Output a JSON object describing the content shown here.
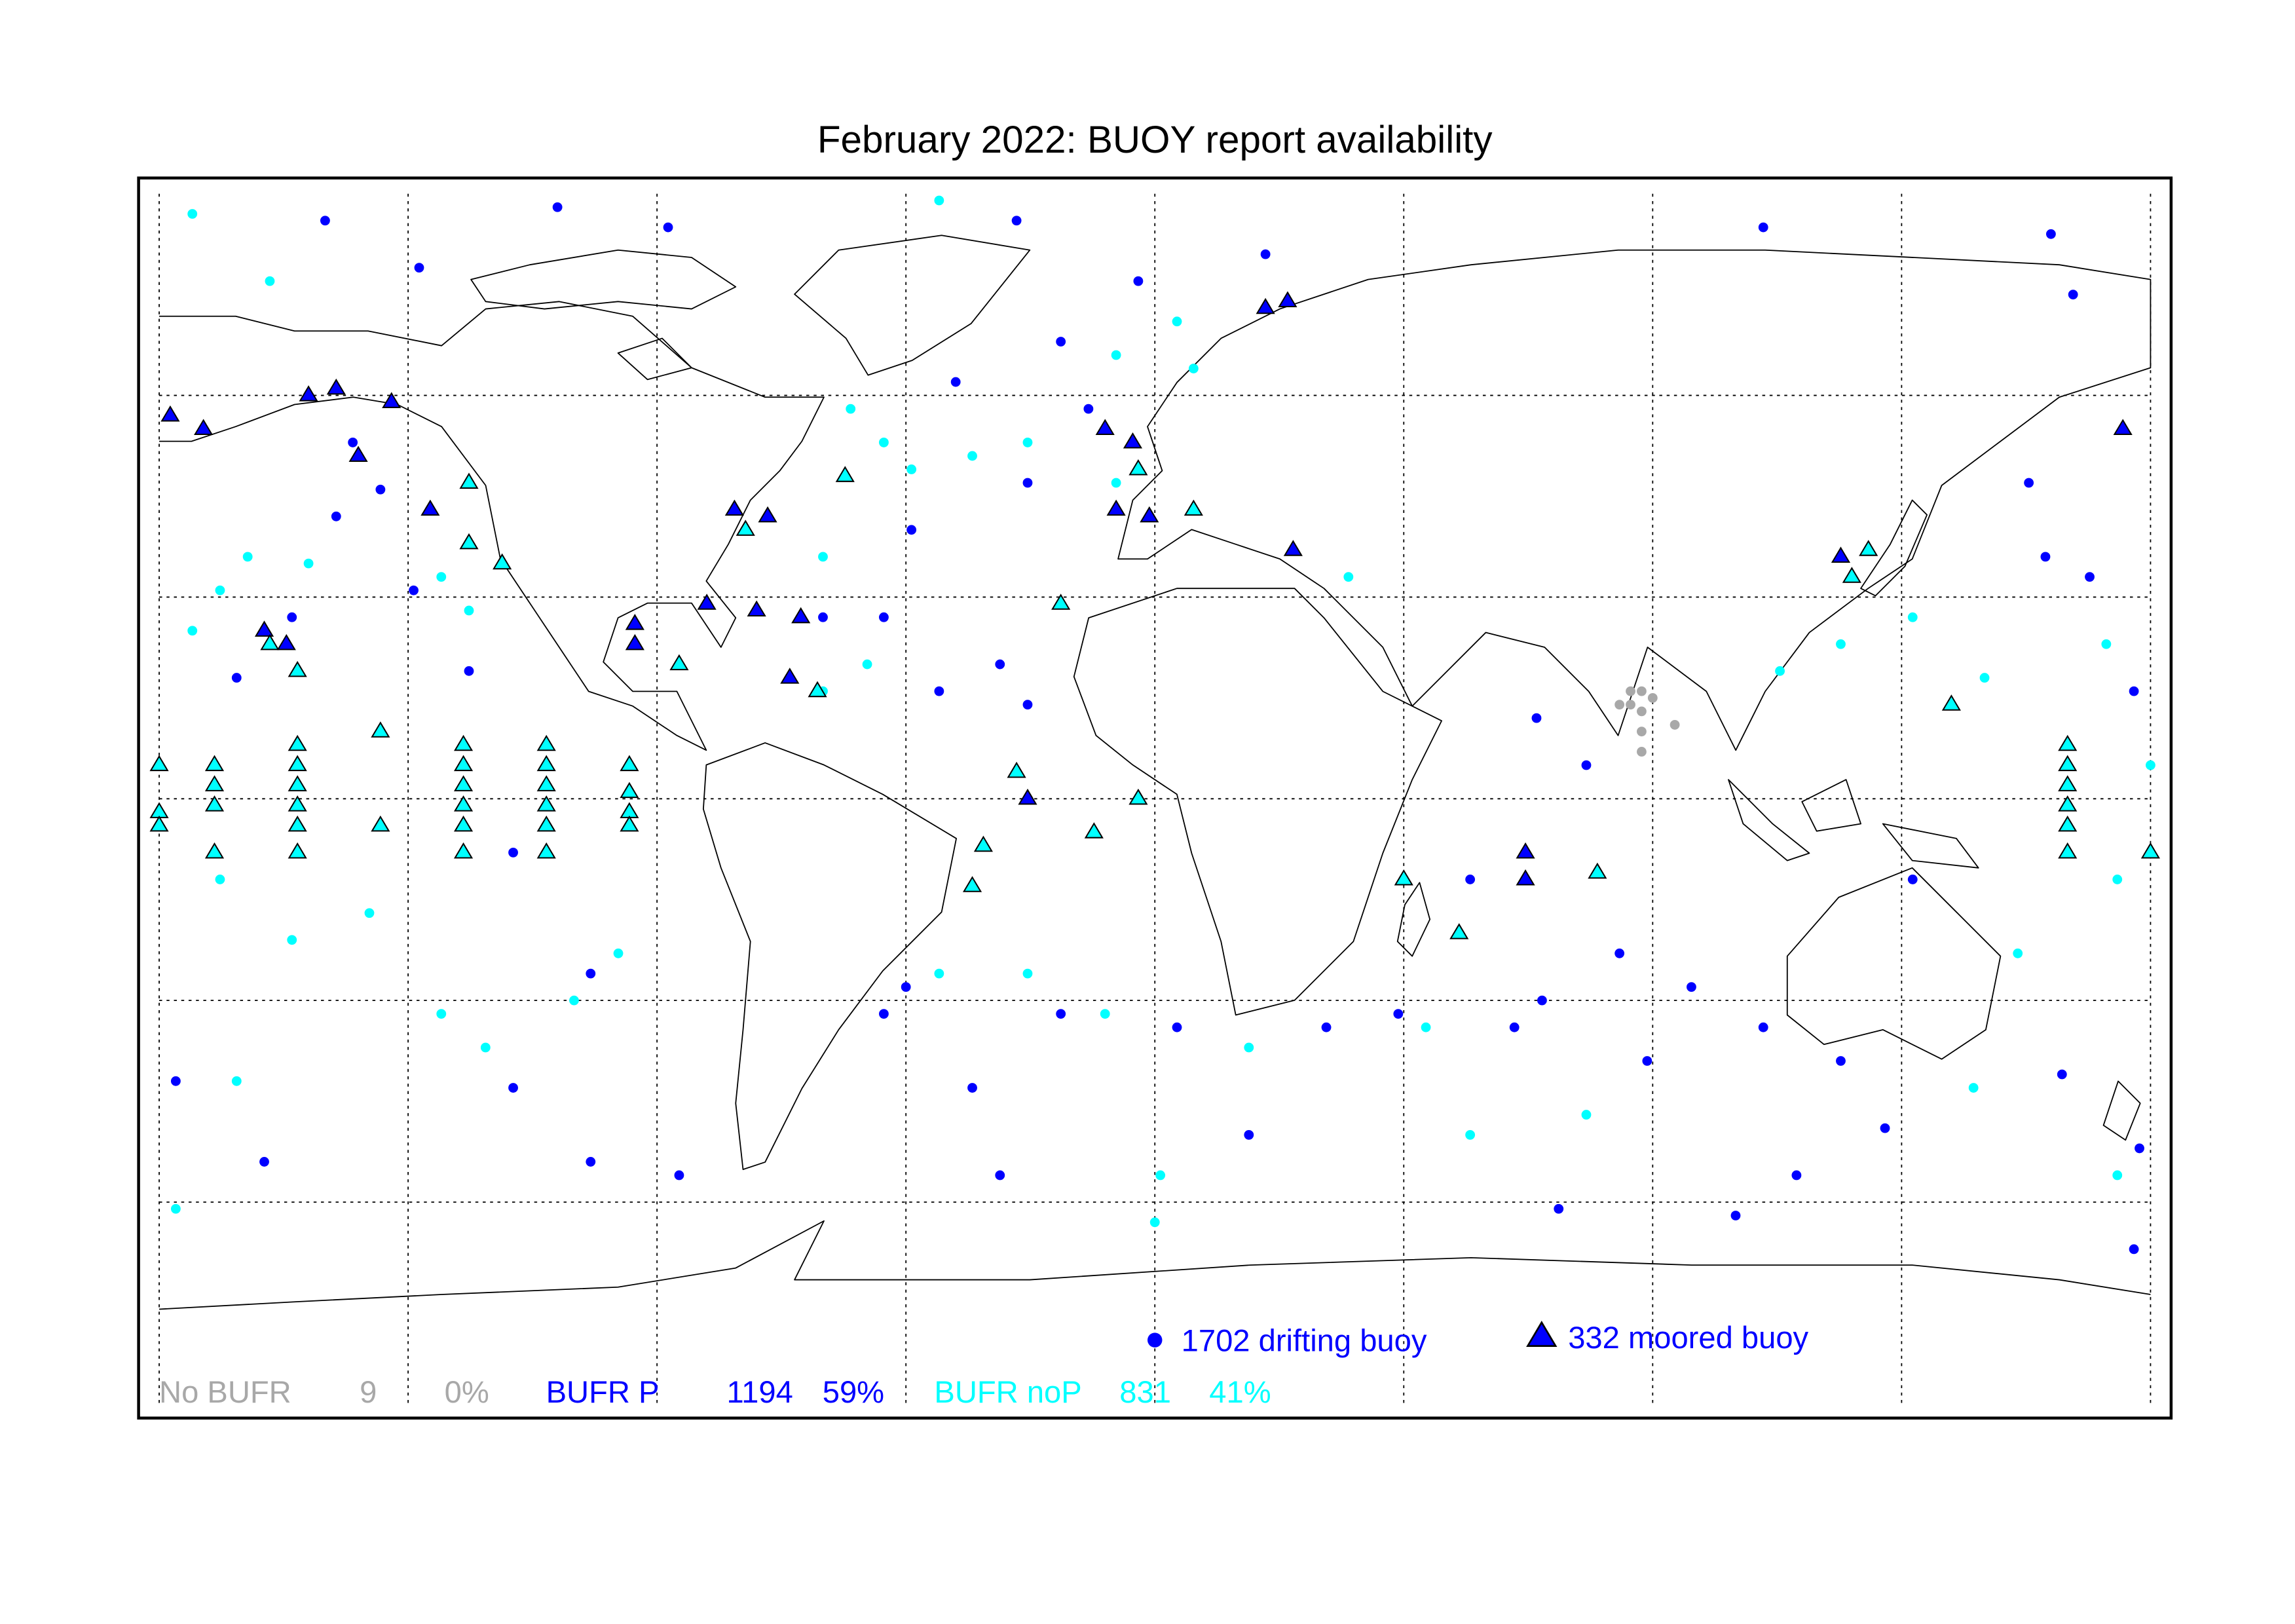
{
  "chart_data": {
    "type": "map",
    "title": "February 2022: BUOY report availability",
    "legend": [
      {
        "label": "1702 drifting buoy",
        "marker": "circle"
      },
      {
        "label": "332 moored buoy",
        "marker": "triangle"
      }
    ],
    "legend_color": "#0000ff",
    "grid": true,
    "series": [
      {
        "name": "No BUFR",
        "color": "#a8a8a8",
        "count": 9,
        "percent": {
          "value": 0,
          "label": "0%"
        },
        "drifting": [
          [
            88,
            16
          ],
          [
            84,
            14
          ],
          [
            86,
            14
          ],
          [
            88,
            13
          ],
          [
            94,
            11
          ],
          [
            88,
            10
          ],
          [
            88,
            7
          ],
          [
            86,
            16
          ],
          [
            90,
            15
          ]
        ],
        "moored": []
      },
      {
        "name": "BUFR P",
        "color": "#0000ff",
        "count": 1194,
        "percent": {
          "value": 59,
          "label": "59%"
        },
        "drifting": [
          [
            -150,
            86
          ],
          [
            -133,
            79
          ],
          [
            -108,
            88
          ],
          [
            -88,
            85
          ],
          [
            -25,
            86
          ],
          [
            -3,
            77
          ],
          [
            20,
            81
          ],
          [
            110,
            85
          ],
          [
            162,
            84
          ],
          [
            166,
            75
          ],
          [
            -145,
            53
          ],
          [
            -140,
            46
          ],
          [
            -148,
            42
          ],
          [
            -134,
            31
          ],
          [
            -156,
            27
          ],
          [
            -166,
            18
          ],
          [
            -124,
            19
          ],
          [
            -116,
            -8
          ],
          [
            -102,
            -26
          ],
          [
            -116,
            -43
          ],
          [
            -49,
            27
          ],
          [
            -39,
            16
          ],
          [
            -23,
            14
          ],
          [
            -28,
            20
          ],
          [
            -60,
            27
          ],
          [
            -44,
            40
          ],
          [
            -23,
            47
          ],
          [
            -12,
            58
          ],
          [
            -36,
            62
          ],
          [
            -17,
            68
          ],
          [
            69,
            12
          ],
          [
            78,
            5
          ],
          [
            57,
            -12
          ],
          [
            84,
            -23
          ],
          [
            97,
            -28
          ],
          [
            110,
            -34
          ],
          [
            124,
            -39
          ],
          [
            137,
            -12
          ],
          [
            169,
            33
          ],
          [
            177,
            16
          ],
          [
            158,
            47
          ],
          [
            161,
            36
          ],
          [
            31,
            -34
          ],
          [
            44,
            -32
          ],
          [
            70,
            -30
          ],
          [
            73,
            -61
          ],
          [
            105,
            -62
          ],
          [
            116,
            -56
          ],
          [
            132,
            -49
          ],
          [
            164,
            -41
          ],
          [
            -49,
            -32
          ],
          [
            -33,
            -43
          ],
          [
            -17,
            -32
          ],
          [
            4,
            -34
          ],
          [
            -28,
            -56
          ],
          [
            -45,
            -28
          ],
          [
            -86,
            -56
          ],
          [
            -102,
            -54
          ],
          [
            -161,
            -54
          ],
          [
            -177,
            -42
          ],
          [
            178,
            -52
          ],
          [
            177,
            -67
          ],
          [
            17,
            -50
          ],
          [
            65,
            -34
          ],
          [
            89,
            -39
          ]
        ],
        "moored": [
          [
            -178,
            57
          ],
          [
            -172,
            55
          ],
          [
            -153,
            60
          ],
          [
            -148,
            61
          ],
          [
            -138,
            59
          ],
          [
            -131,
            43
          ],
          [
            -144,
            51
          ],
          [
            -161,
            25
          ],
          [
            -157,
            23
          ],
          [
            -76,
            43
          ],
          [
            -70,
            42
          ],
          [
            -94,
            26
          ],
          [
            -94,
            23
          ],
          [
            -81,
            29
          ],
          [
            -72,
            28
          ],
          [
            -66,
            18
          ],
          [
            -64,
            27
          ],
          [
            -7,
            43
          ],
          [
            -1,
            42
          ],
          [
            20,
            73
          ],
          [
            24,
            74
          ],
          [
            175,
            55
          ],
          [
            67,
            -8
          ],
          [
            67,
            -12
          ],
          [
            -23,
            0
          ],
          [
            25,
            37
          ],
          [
            -9,
            55
          ],
          [
            -4,
            53
          ],
          [
            124,
            36
          ]
        ]
      },
      {
        "name": "BUFR noP",
        "color": "#00ffff",
        "count": 831,
        "percent": {
          "value": 41,
          "label": "41%"
        },
        "drifting": [
          [
            -174,
            87
          ],
          [
            -160,
            77
          ],
          [
            -39,
            89
          ],
          [
            -49,
            53
          ],
          [
            -44,
            49
          ],
          [
            -55,
            58
          ],
          [
            -33,
            51
          ],
          [
            -23,
            53
          ],
          [
            -7,
            47
          ],
          [
            4,
            71
          ],
          [
            7,
            64
          ],
          [
            -7,
            66
          ],
          [
            -169,
            31
          ],
          [
            -164,
            36
          ],
          [
            -153,
            35
          ],
          [
            -174,
            25
          ],
          [
            -129,
            33
          ],
          [
            -124,
            28
          ],
          [
            -60,
            36
          ],
          [
            -52,
            20
          ],
          [
            -60,
            16
          ],
          [
            -169,
            -12
          ],
          [
            -156,
            -21
          ],
          [
            -142,
            -17
          ],
          [
            -129,
            -32
          ],
          [
            -121,
            -37
          ],
          [
            -105,
            -30
          ],
          [
            -97,
            -23
          ],
          [
            -177,
            -61
          ],
          [
            -166,
            -42
          ],
          [
            -39,
            -26
          ],
          [
            -23,
            -26
          ],
          [
            -9,
            -32
          ],
          [
            17,
            -37
          ],
          [
            49,
            -34
          ],
          [
            148,
            -43
          ],
          [
            156,
            -23
          ],
          [
            174,
            -12
          ],
          [
            180,
            5
          ],
          [
            172,
            23
          ],
          [
            137,
            27
          ],
          [
            150,
            18
          ],
          [
            113,
            19
          ],
          [
            124,
            23
          ],
          [
            35,
            33
          ],
          [
            1,
            -56
          ],
          [
            0,
            -63
          ],
          [
            174,
            -56
          ],
          [
            57,
            -50
          ],
          [
            78,
            -47
          ]
        ],
        "moored": [
          [
            -180,
            5
          ],
          [
            -180,
            -2
          ],
          [
            -180,
            -4
          ],
          [
            -170,
            5
          ],
          [
            -170,
            2
          ],
          [
            -170,
            -1
          ],
          [
            -170,
            -8
          ],
          [
            -155,
            8
          ],
          [
            -155,
            5
          ],
          [
            -155,
            2
          ],
          [
            -155,
            -1
          ],
          [
            -155,
            -4
          ],
          [
            -155,
            -8
          ],
          [
            -140,
            10
          ],
          [
            -140,
            -4
          ],
          [
            -125,
            8
          ],
          [
            -125,
            5
          ],
          [
            -125,
            2
          ],
          [
            -125,
            -1
          ],
          [
            -125,
            -4
          ],
          [
            -125,
            -8
          ],
          [
            -110,
            8
          ],
          [
            -110,
            5
          ],
          [
            -110,
            2
          ],
          [
            -110,
            -1
          ],
          [
            -110,
            -4
          ],
          [
            -110,
            -8
          ],
          [
            -95,
            5
          ],
          [
            -95,
            1
          ],
          [
            -95,
            -2
          ],
          [
            -95,
            -4
          ],
          [
            165,
            8
          ],
          [
            165,
            5
          ],
          [
            165,
            2
          ],
          [
            165,
            -1
          ],
          [
            165,
            -4
          ],
          [
            165,
            -8
          ],
          [
            180,
            -8
          ],
          [
            -124,
            47
          ],
          [
            -124,
            38
          ],
          [
            -118,
            35
          ],
          [
            -160,
            23
          ],
          [
            -155,
            19
          ],
          [
            -74,
            40
          ],
          [
            -86,
            20
          ],
          [
            -61,
            16
          ],
          [
            -3,
            49
          ],
          [
            7,
            43
          ],
          [
            129,
            37
          ],
          [
            126,
            33
          ],
          [
            144,
            14
          ],
          [
            45,
            -12
          ],
          [
            55,
            -20
          ],
          [
            80,
            -11
          ],
          [
            -31,
            -7
          ],
          [
            -33,
            -13
          ],
          [
            -11,
            -5
          ],
          [
            -3,
            0
          ],
          [
            -25,
            4
          ],
          [
            -17,
            29
          ],
          [
            -56,
            48
          ]
        ]
      }
    ]
  }
}
